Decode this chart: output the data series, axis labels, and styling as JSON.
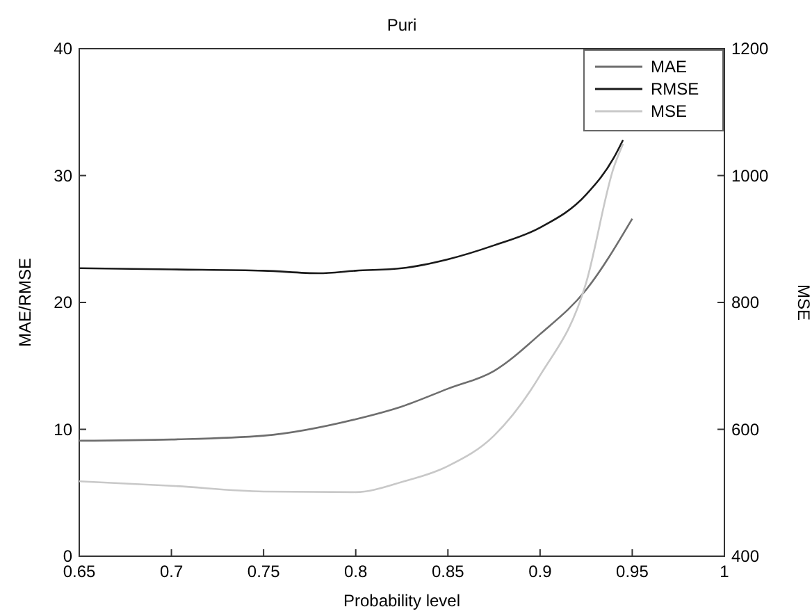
{
  "chart_data": {
    "type": "line",
    "title": "Puri",
    "xlabel": "Probability level",
    "ylabel": "MAE/RMSE",
    "y2label": "MSE",
    "x": [
      0.65,
      0.7,
      0.75,
      0.78,
      0.8,
      0.825,
      0.85,
      0.875,
      0.9,
      0.925,
      0.94,
      0.945
    ],
    "series": [
      {
        "name": "MAE",
        "color": "#6e6e6e",
        "x": [
          0.65,
          0.7,
          0.75,
          0.8,
          0.825,
          0.85,
          0.875,
          0.9,
          0.925,
          0.95
        ],
        "values": [
          9.1,
          9.2,
          9.5,
          10.8,
          11.8,
          13.2,
          14.6,
          17.5,
          21.0,
          26.6
        ]
      },
      {
        "name": "RMSE",
        "color": "#1a1a1a",
        "values": [
          22.7,
          22.6,
          22.5,
          22.3,
          22.5,
          22.7,
          23.4,
          24.5,
          25.9,
          28.5,
          31.4,
          32.8
        ]
      },
      {
        "name": "MSE",
        "color": "#c8c8c8",
        "axis": "y2",
        "x": [
          0.65,
          0.7,
          0.75,
          0.8,
          0.825,
          0.85,
          0.875,
          0.9,
          0.925,
          0.94,
          0.945
        ],
        "values": [
          518,
          511,
          502,
          501,
          517,
          542,
          590,
          685,
          831,
          1013,
          1050
        ]
      }
    ],
    "xlim": [
      0.65,
      1
    ],
    "xticks": [
      0.65,
      0.7,
      0.75,
      0.8,
      0.85,
      0.9,
      0.95,
      1
    ],
    "ylim": [
      0,
      40
    ],
    "yticks": [
      0,
      10,
      20,
      30,
      40
    ],
    "y2lim": [
      400,
      1200
    ],
    "y2ticks": [
      400,
      600,
      800,
      1000,
      1200
    ],
    "legend": "top right",
    "grid": false,
    "marker": "none",
    "line_style": "solid"
  }
}
